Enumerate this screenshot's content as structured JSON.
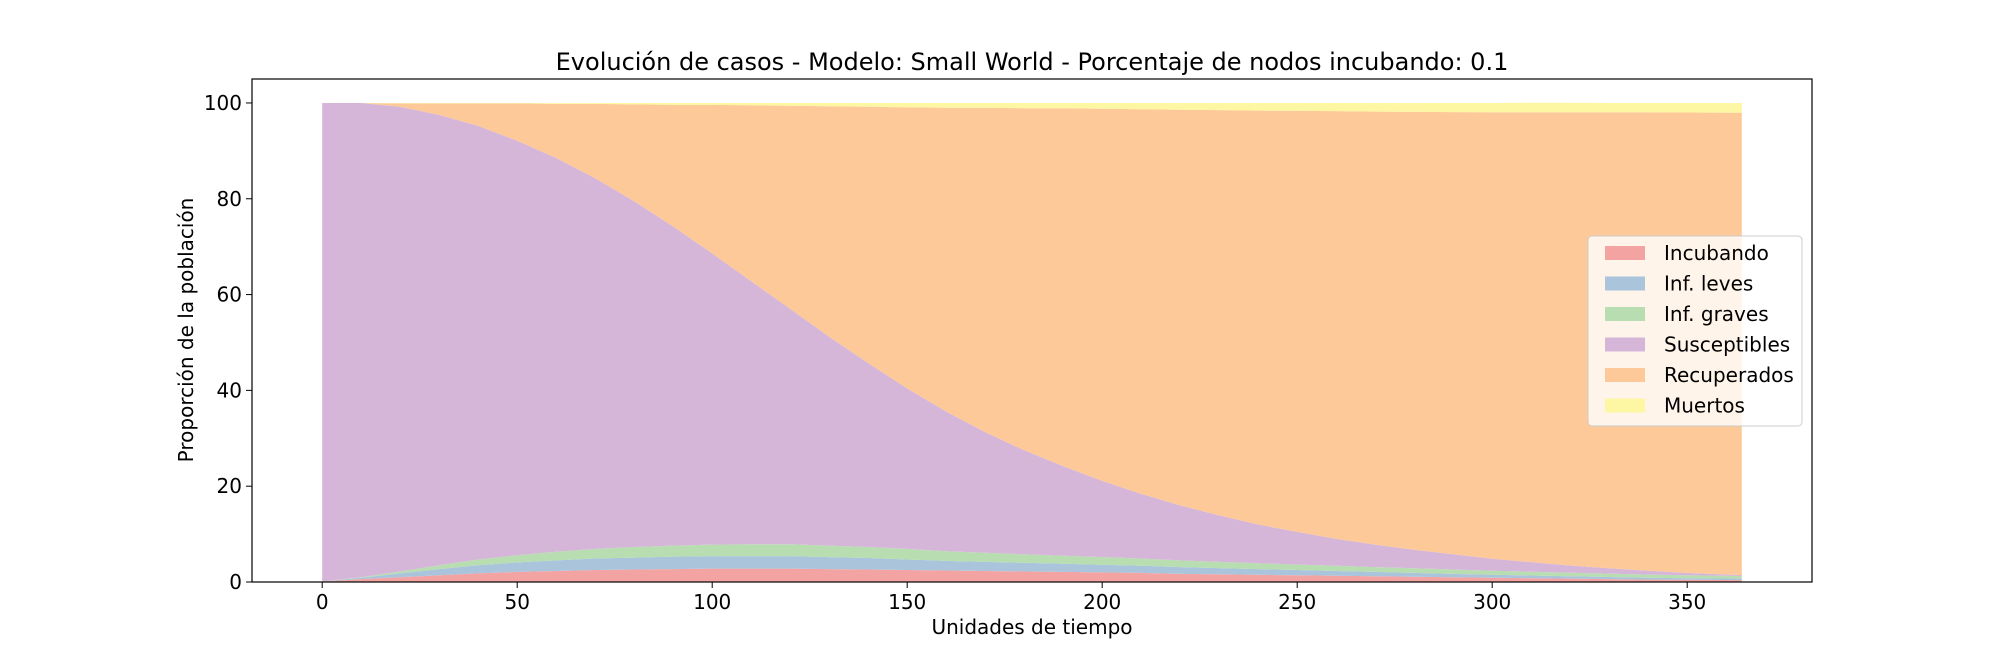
{
  "chart_data": {
    "type": "area",
    "stacked": true,
    "title": "Evolución de casos - Modelo: Small World - Porcentaje de nodos incubando: 0.1",
    "xlabel": "Unidades de tiempo",
    "ylabel": "Proporción de la población",
    "xlim": [
      -18,
      382
    ],
    "ylim": [
      0,
      105
    ],
    "xticks": [
      0,
      50,
      100,
      150,
      200,
      250,
      300,
      350
    ],
    "yticks": [
      0,
      20,
      40,
      60,
      80,
      100
    ],
    "grid": false,
    "legend_position": "center-right",
    "x": [
      0,
      10,
      20,
      30,
      40,
      50,
      60,
      70,
      80,
      90,
      100,
      110,
      120,
      130,
      140,
      150,
      160,
      170,
      180,
      190,
      200,
      210,
      220,
      230,
      240,
      250,
      260,
      270,
      280,
      290,
      300,
      310,
      320,
      330,
      340,
      350,
      364
    ],
    "series": [
      {
        "name": "Incubando",
        "color": "#f4a3a3",
        "values": [
          0.1,
          0.6,
          1.0,
          1.4,
          1.8,
          2.1,
          2.3,
          2.5,
          2.6,
          2.7,
          2.8,
          2.8,
          2.8,
          2.7,
          2.6,
          2.5,
          2.4,
          2.3,
          2.2,
          2.1,
          2.0,
          1.9,
          1.7,
          1.6,
          1.5,
          1.4,
          1.3,
          1.2,
          1.1,
          1.0,
          0.9,
          0.8,
          0.7,
          0.6,
          0.5,
          0.45,
          0.4
        ]
      },
      {
        "name": "Inf. leves",
        "color": "#aac4dc",
        "values": [
          0.0,
          0.3,
          0.8,
          1.3,
          1.7,
          2.0,
          2.2,
          2.4,
          2.5,
          2.6,
          2.6,
          2.6,
          2.6,
          2.5,
          2.4,
          2.2,
          2.0,
          1.9,
          1.8,
          1.7,
          1.6,
          1.5,
          1.4,
          1.3,
          1.2,
          1.1,
          1.0,
          0.9,
          0.8,
          0.7,
          0.6,
          0.55,
          0.5,
          0.45,
          0.4,
          0.35,
          0.3
        ]
      },
      {
        "name": "Inf. graves",
        "color": "#b7ddb0",
        "values": [
          0.0,
          0.1,
          0.4,
          0.8,
          1.2,
          1.5,
          1.8,
          2.0,
          2.2,
          2.3,
          2.4,
          2.5,
          2.5,
          2.4,
          2.3,
          2.2,
          2.0,
          1.9,
          1.8,
          1.7,
          1.6,
          1.5,
          1.4,
          1.3,
          1.2,
          1.15,
          1.1,
          1.0,
          0.95,
          0.9,
          0.85,
          0.8,
          0.75,
          0.7,
          0.65,
          0.6,
          0.55
        ]
      },
      {
        "name": "Susceptibles",
        "color": "#d5b6d9",
        "values": [
          99.9,
          99.0,
          97.0,
          94.0,
          90.5,
          86.5,
          82.2,
          77.4,
          72.2,
          66.6,
          60.8,
          54.9,
          49.1,
          43.6,
          38.4,
          33.5,
          29.2,
          25.2,
          21.7,
          18.7,
          15.9,
          13.5,
          11.5,
          9.7,
          8.1,
          6.8,
          5.6,
          4.7,
          3.9,
          3.2,
          2.5,
          2.0,
          1.5,
          1.1,
          0.8,
          0.5,
          0.2
        ]
      },
      {
        "name": "Recuperados",
        "color": "#fec998",
        "values": [
          0.0,
          0.0,
          0.7,
          2.4,
          4.7,
          7.8,
          11.3,
          15.5,
          20.2,
          25.4,
          31.0,
          36.7,
          42.4,
          48.1,
          53.5,
          58.7,
          63.4,
          67.7,
          71.4,
          74.7,
          77.7,
          80.3,
          82.6,
          84.6,
          86.4,
          87.9,
          89.3,
          90.4,
          91.4,
          92.3,
          93.2,
          93.9,
          94.6,
          95.2,
          95.7,
          96.1,
          96.5
        ]
      },
      {
        "name": "Muertos",
        "color": "#fdf6a3",
        "values": [
          0.0,
          0.0,
          0.1,
          0.1,
          0.1,
          0.1,
          0.2,
          0.2,
          0.3,
          0.4,
          0.4,
          0.5,
          0.6,
          0.7,
          0.8,
          0.9,
          1.0,
          1.0,
          1.1,
          1.1,
          1.2,
          1.3,
          1.4,
          1.5,
          1.6,
          1.65,
          1.7,
          1.8,
          1.85,
          1.9,
          1.95,
          2.0,
          2.0,
          1.95,
          1.95,
          2.0,
          2.05
        ]
      }
    ]
  }
}
